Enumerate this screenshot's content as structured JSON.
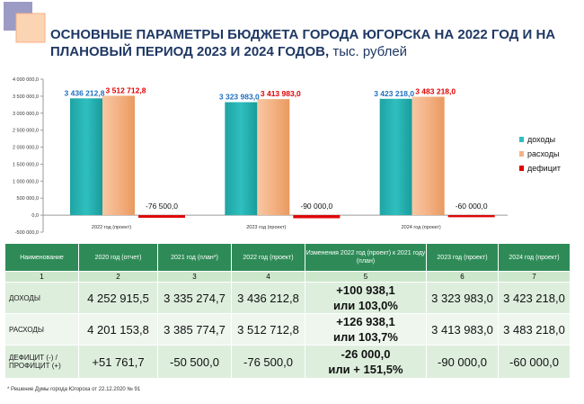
{
  "title": {
    "main": "ОСНОВНЫЕ ПАРАМЕТРЫ БЮДЖЕТА ГОРОДА ЮГОРСКА НА 2022 ГОД И НА ПЛАНОВЫЙ ПЕРИОД 2023 И 2024 ГОДОВ,",
    "unit": "тыс. рублей"
  },
  "colors": {
    "incomes": "#2fbfbf",
    "expenses": "#f4b183",
    "deficit": "#e00000",
    "title": "#1f3864",
    "table_header": "#2e8b57"
  },
  "chart_data": {
    "type": "bar",
    "categories": [
      "2022 год (проект)",
      "2023 год (проект)",
      "2024 год (проект)"
    ],
    "series": [
      {
        "name": "доходы",
        "values": [
          3436212.8,
          3323983.0,
          3423218.0
        ],
        "labels": [
          "3 436 212,8",
          "3 323 983,0",
          "3 423 218,0"
        ]
      },
      {
        "name": "расходы",
        "values": [
          3512712.8,
          3413983.0,
          3483218.0
        ],
        "labels": [
          "3 512 712,8",
          "3 413 983,0",
          "3 483 218,0"
        ]
      },
      {
        "name": "дефицит",
        "values": [
          -76500.0,
          -90000.0,
          -60000.0
        ],
        "labels": [
          "-76 500,0",
          "-90 000,0",
          "-60 000,0"
        ]
      }
    ],
    "ylim": [
      -500000,
      4000000
    ],
    "yticks": [
      -500000,
      0,
      500000,
      1000000,
      1500000,
      2000000,
      2500000,
      3000000,
      3500000,
      4000000
    ],
    "ytick_labels": [
      "-500 000,0",
      "0,0",
      "500 000,0",
      "1 000 000,0",
      "1 500 000,0",
      "2 000 000,0",
      "2 500 000,0",
      "3 000 000,0",
      "3 500 000,0",
      "4 000 000,0"
    ],
    "legend_position": "right",
    "grid": false
  },
  "table": {
    "headers": [
      "Наименование",
      "2020 год (отчет)",
      "2021 год (план*)",
      "2022 год (проект)",
      "Изменения 2022 год (проект) к 2021 году (план)",
      "2023 год (проект)",
      "2024 год (проект)"
    ],
    "numbers": [
      "1",
      "2",
      "3",
      "4",
      "5",
      "6",
      "7"
    ],
    "rows": [
      {
        "label": "ДОХОДЫ",
        "v2020": "4 252 915,5",
        "v2021": "3 335 274,7",
        "v2022": "3 436 212,8",
        "change1": "+100 938,1",
        "change2": "или 103,0%",
        "v2023": "3 323 983,0",
        "v2024": "3 423 218,0"
      },
      {
        "label": "РАСХОДЫ",
        "v2020": "4 201 153,8",
        "v2021": "3 385 774,7",
        "v2022": "3 512 712,8",
        "change1": "+126 938,1",
        "change2": "или 103,7%",
        "v2023": "3 413 983,0",
        "v2024": "3 483 218,0"
      },
      {
        "label": "ДЕФИЦИТ (-) / ПРОФИЦИТ (+)",
        "v2020": "+51 761,7",
        "v2021": "-50 500,0",
        "v2022": "-76 500,0",
        "change1": "-26 000,0",
        "change2": "или + 151,5%",
        "v2023": "-90 000,0",
        "v2024": "-60 000,0"
      }
    ]
  },
  "footnote": "* Решение Думы города Югорска от 22.12.2020 № 91"
}
